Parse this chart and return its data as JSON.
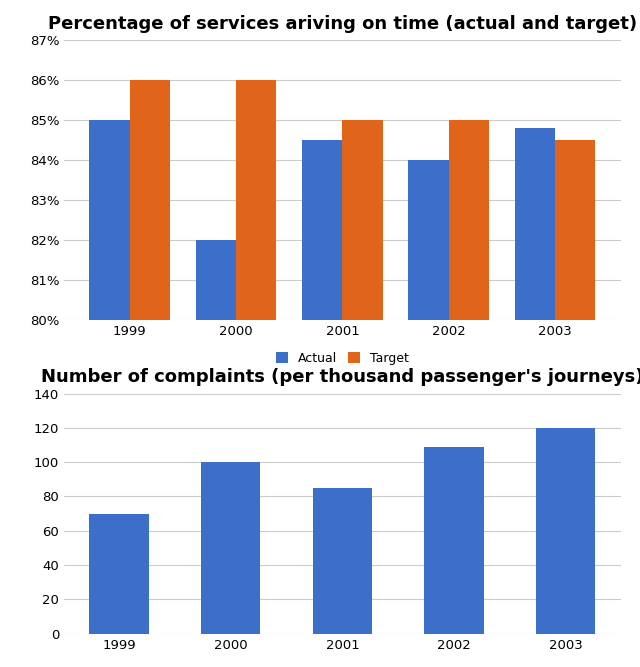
{
  "years": [
    "1999",
    "2000",
    "2001",
    "2002",
    "2003"
  ],
  "chart1": {
    "title": "Percentage of services ariving on time (actual and target)",
    "actual": [
      85,
      82,
      84.5,
      84,
      84.8
    ],
    "target": [
      86,
      86,
      85,
      85,
      84.5
    ],
    "ylim": [
      80,
      87
    ],
    "yticks": [
      80,
      81,
      82,
      83,
      84,
      85,
      86,
      87
    ],
    "bar_color_actual": "#3B6FC9",
    "bar_color_target": "#E0641A",
    "legend_labels": [
      "Actual",
      "Target"
    ]
  },
  "chart2": {
    "title": "Number of complaints (per thousand passenger's journeys)",
    "values": [
      70,
      100,
      85,
      109,
      120
    ],
    "ylim": [
      0,
      140
    ],
    "yticks": [
      0,
      20,
      40,
      60,
      80,
      100,
      120,
      140
    ],
    "bar_color": "#3B6FC9"
  },
  "background_color": "#ffffff",
  "grid_color": "#cccccc",
  "title_fontsize": 13,
  "tick_fontsize": 9.5,
  "legend_fontsize": 9
}
